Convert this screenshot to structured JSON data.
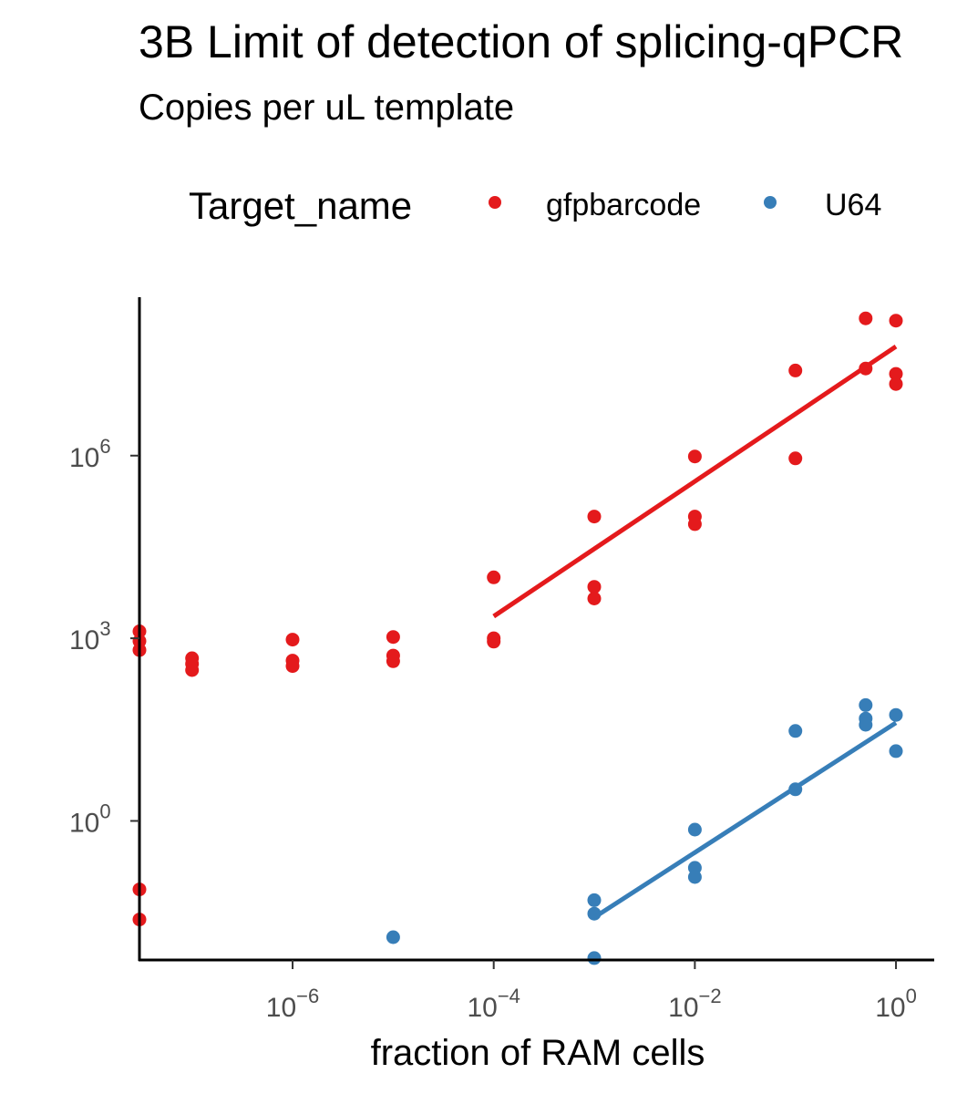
{
  "chart_data": {
    "type": "scatter",
    "title": "3B Limit of detection of splicing-qPCR",
    "subtitle": "Copies per uL template",
    "xlabel": "fraction of RAM cells",
    "ylabel": "",
    "legend": {
      "title": "Target_name",
      "position": "top"
    },
    "x_scale": "log10",
    "y_scale": "log10",
    "xlim": [
      3e-08,
      2.4
    ],
    "ylim": [
      0.0052,
      400000000
    ],
    "x_ticks": [
      {
        "value": 1e-06,
        "base": "10",
        "exp": "−6"
      },
      {
        "value": 0.0001,
        "base": "10",
        "exp": "−4"
      },
      {
        "value": 0.01,
        "base": "10",
        "exp": "−2"
      },
      {
        "value": 1,
        "base": "10",
        "exp": "0"
      }
    ],
    "y_ticks": [
      {
        "value": 1,
        "base": "10",
        "exp": "0"
      },
      {
        "value": 1000,
        "base": "10",
        "exp": "3"
      },
      {
        "value": 1000000,
        "base": "10",
        "exp": "6"
      }
    ],
    "series": [
      {
        "name": "gfpbarcode",
        "color": "#e41a1c",
        "points": [
          [
            3e-08,
            1300
          ],
          [
            3e-08,
            900
          ],
          [
            3e-08,
            640
          ],
          [
            3e-08,
            0.075
          ],
          [
            3e-08,
            0.024
          ],
          [
            1e-07,
            470
          ],
          [
            1e-07,
            380
          ],
          [
            1e-07,
            300
          ],
          [
            1e-06,
            950
          ],
          [
            1e-06,
            430
          ],
          [
            1e-06,
            350
          ],
          [
            1e-05,
            1050
          ],
          [
            1e-05,
            520
          ],
          [
            1e-05,
            420
          ],
          [
            0.0001,
            10000
          ],
          [
            0.0001,
            1000
          ],
          [
            0.0001,
            880
          ],
          [
            0.001,
            100000
          ],
          [
            0.001,
            7000
          ],
          [
            0.001,
            4500
          ],
          [
            0.01,
            970000
          ],
          [
            0.01,
            100000
          ],
          [
            0.01,
            75000
          ],
          [
            0.1,
            25000000
          ],
          [
            0.1,
            900000
          ],
          [
            0.5,
            180000000
          ],
          [
            0.5,
            27000000
          ],
          [
            1,
            165000000
          ],
          [
            1,
            22000000
          ],
          [
            1,
            15000000
          ]
        ],
        "fit": {
          "x": [
            0.0001,
            1
          ],
          "y": [
            2300,
            62000000
          ]
        }
      },
      {
        "name": "U64",
        "color": "#377eb8",
        "points": [
          [
            1e-05,
            0.0123
          ],
          [
            0.001,
            0.05
          ],
          [
            0.001,
            0.03
          ],
          [
            0.001,
            0.0056
          ],
          [
            0.01,
            0.72
          ],
          [
            0.01,
            0.17
          ],
          [
            0.01,
            0.12
          ],
          [
            0.1,
            30
          ],
          [
            0.1,
            3.3
          ],
          [
            0.5,
            80
          ],
          [
            0.5,
            48
          ],
          [
            0.5,
            38
          ],
          [
            1,
            55
          ],
          [
            1,
            14
          ]
        ],
        "fit": {
          "x": [
            0.001,
            1
          ],
          "y": [
            0.026,
            41
          ]
        }
      }
    ]
  }
}
